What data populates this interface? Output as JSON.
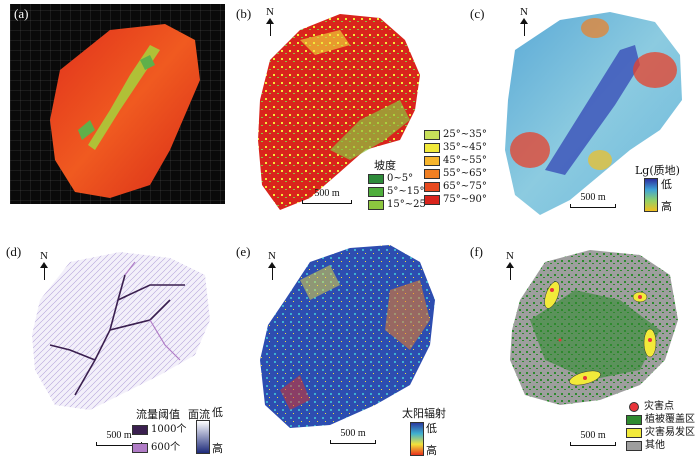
{
  "panels": {
    "a": {
      "label": "(a)"
    },
    "b": {
      "label": "(b)",
      "north": "N",
      "scale": "500 m",
      "legend_title": "坡度",
      "classes": [
        {
          "label": "0~5°",
          "color": "#2e8b3a"
        },
        {
          "label": "5°~15°",
          "color": "#4fae3c"
        },
        {
          "label": "15°~25°",
          "color": "#8cc63f"
        },
        {
          "label": "25°~35°",
          "color": "#c8e05a"
        },
        {
          "label": "35°~45°",
          "color": "#f2ea3a"
        },
        {
          "label": "45°~55°",
          "color": "#f7b52c"
        },
        {
          "label": "55°~65°",
          "color": "#f07f22"
        },
        {
          "label": "65°~75°",
          "color": "#e84a1f"
        },
        {
          "label": "75°~90°",
          "color": "#d9241c"
        }
      ]
    },
    "c": {
      "label": "(c)",
      "north": "N",
      "scale": "500 m",
      "legend_title": "Lg(质地)",
      "low": "低",
      "high": "高"
    },
    "d": {
      "label": "(d)",
      "north": "N",
      "scale": "500 m",
      "legend_title": "流量阈值",
      "threshold_1000": "1000个",
      "threshold_600": "600个",
      "surface_label": "面流",
      "low": "低",
      "high": "高",
      "color_1000": "#3a1f4f",
      "color_600": "#b07cc6"
    },
    "e": {
      "label": "(e)",
      "north": "N",
      "scale": "500 m",
      "legend_title": "太阳辐射",
      "low": "低",
      "high": "高"
    },
    "f": {
      "label": "(f)",
      "north": "N",
      "scale": "500 m",
      "legend": [
        {
          "label": "灾害点",
          "color": "#e8343a"
        },
        {
          "label": "植被覆盖区",
          "color": "#2f8a2f"
        },
        {
          "label": "灾害易发区",
          "color": "#f2ea3a"
        },
        {
          "label": "其他",
          "color": "#9e9e9e"
        }
      ]
    }
  }
}
